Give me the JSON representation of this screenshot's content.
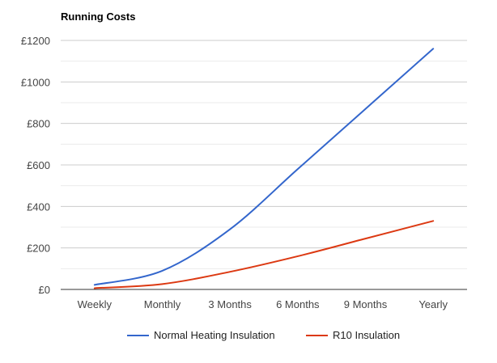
{
  "chart_data": {
    "type": "line",
    "title": "Running Costs",
    "xlabel": "",
    "ylabel": "",
    "categories": [
      "Weekly",
      "Monthly",
      "3 Months",
      "6 Months",
      "9 Months",
      "Yearly"
    ],
    "yticks": [
      "£0",
      "£200",
      "£400",
      "£600",
      "£800",
      "£1000",
      "£1200"
    ],
    "ylim": [
      0,
      1200
    ],
    "grid": true,
    "legend_position": "bottom",
    "series": [
      {
        "name": "Normal Heating Insulation",
        "color": "#3366cc",
        "values": [
          22,
          90,
          290,
          580,
          870,
          1160
        ]
      },
      {
        "name": "R10 Insulation",
        "color": "#dc3912",
        "values": [
          6,
          26,
          85,
          160,
          245,
          330
        ]
      }
    ]
  }
}
